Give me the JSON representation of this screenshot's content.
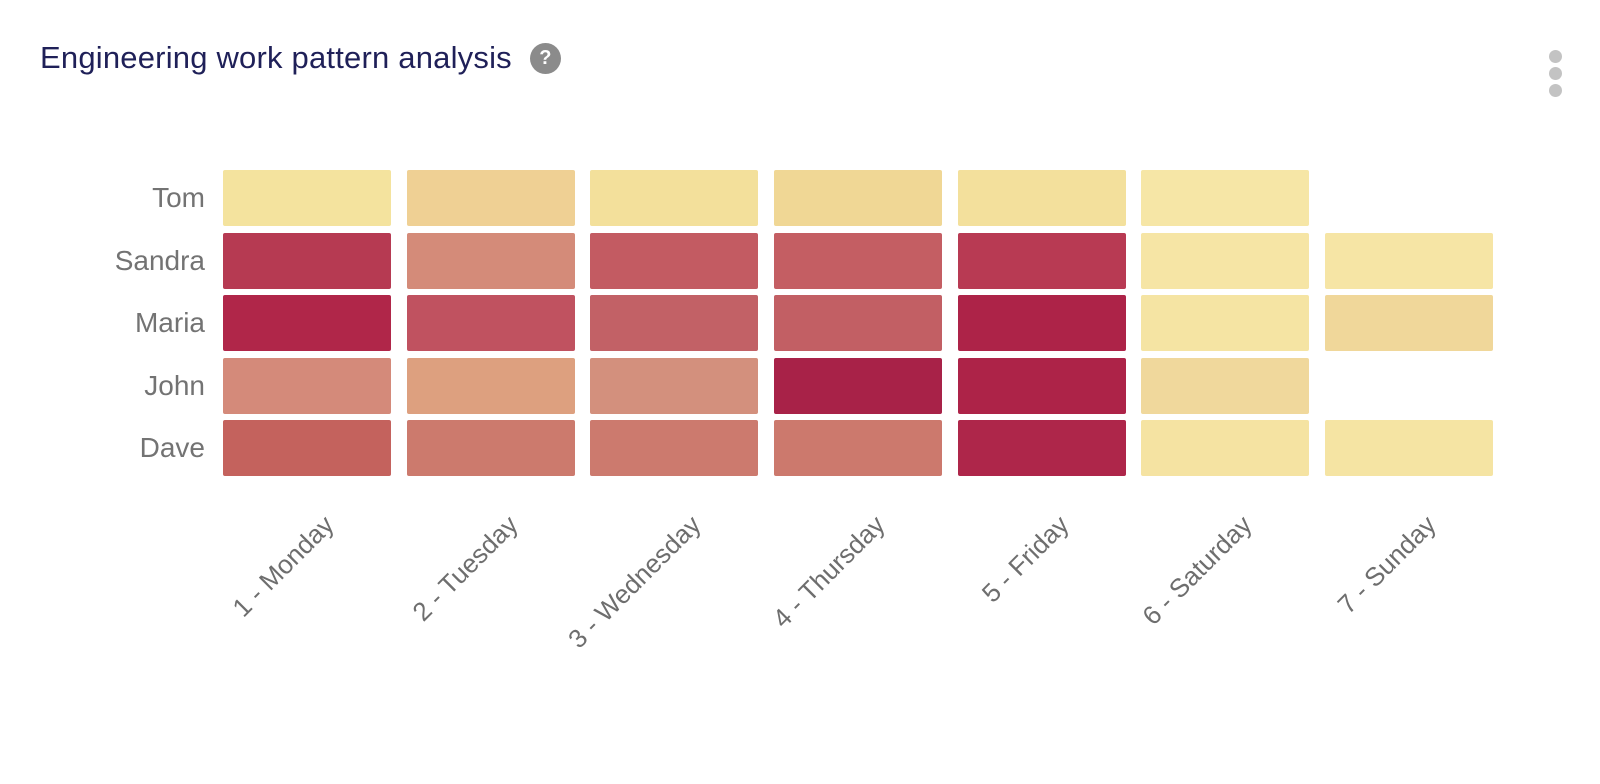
{
  "header": {
    "title": "Engineering work pattern analysis",
    "help_icon_glyph": "?"
  },
  "palette": {
    "background": "#ffffff",
    "title_color": "#1f2058",
    "row_label_color": "#737373",
    "col_label_color": "#6e6e6e",
    "help_icon_bg": "#8b8b8b",
    "help_icon_fg": "#ffffff",
    "kebab_dot_color": "#c3c3c3",
    "cell_gap_color": "#ffffff"
  },
  "chart_data": {
    "type": "heatmap",
    "title": "Engineering work pattern analysis",
    "x_categories": [
      "1 - Monday",
      "2 - Tuesday",
      "3 - Wednesday",
      "4 - Thursday",
      "5 - Friday",
      "6 - Saturday",
      "7 - Sunday"
    ],
    "y_categories": [
      "Tom",
      "Sandra",
      "Maria",
      "John",
      "Dave"
    ],
    "legend_position": "none",
    "grid": "off",
    "color_scale": {
      "low": "#f6e6a6",
      "mid": "#d48b79",
      "high": "#ad2348",
      "note": "color encodes work intensity; no numeric colorbar shown in image"
    },
    "rows": [
      {
        "name": "Tom",
        "cell_colors": [
          "#f4e39e",
          "#efd094",
          "#f3e09b",
          "#f0d795",
          "#f3e09c",
          "#f6e6a6",
          null
        ],
        "intensity_estimates": [
          0.08,
          0.18,
          0.1,
          0.15,
          0.1,
          0.05,
          null
        ]
      },
      {
        "name": "Sandra",
        "cell_colors": [
          "#b63a52",
          "#d48b79",
          "#c35b62",
          "#c45e63",
          "#b83a53",
          "#f6e5a5",
          "#f6e5a5"
        ],
        "intensity_estimates": [
          0.85,
          0.45,
          0.7,
          0.7,
          0.84,
          0.05,
          0.05
        ]
      },
      {
        "name": "Maria",
        "cell_colors": [
          "#b02649",
          "#c05260",
          "#c26166",
          "#c25f64",
          "#ad2348",
          "#f5e4a3",
          "#f0d79a"
        ],
        "intensity_estimates": [
          0.95,
          0.72,
          0.68,
          0.69,
          0.96,
          0.06,
          0.16
        ]
      },
      {
        "name": "John",
        "cell_colors": [
          "#d48a7a",
          "#dda07f",
          "#d3907d",
          "#a82248",
          "#ad2348",
          "#f0d89c",
          null
        ],
        "intensity_estimates": [
          0.46,
          0.35,
          0.44,
          0.97,
          0.96,
          0.15,
          null
        ]
      },
      {
        "name": "Dave",
        "cell_colors": [
          "#c4625d",
          "#cc7a6d",
          "#cc7a6e",
          "#cc796d",
          "#ae264a",
          "#f5e3a2",
          "#f5e4a3"
        ],
        "intensity_estimates": [
          0.66,
          0.55,
          0.55,
          0.55,
          0.94,
          0.07,
          0.06
        ]
      }
    ],
    "missing_cells": [
      [
        "Tom",
        "7 - Sunday"
      ],
      [
        "John",
        "7 - Sunday"
      ]
    ]
  }
}
